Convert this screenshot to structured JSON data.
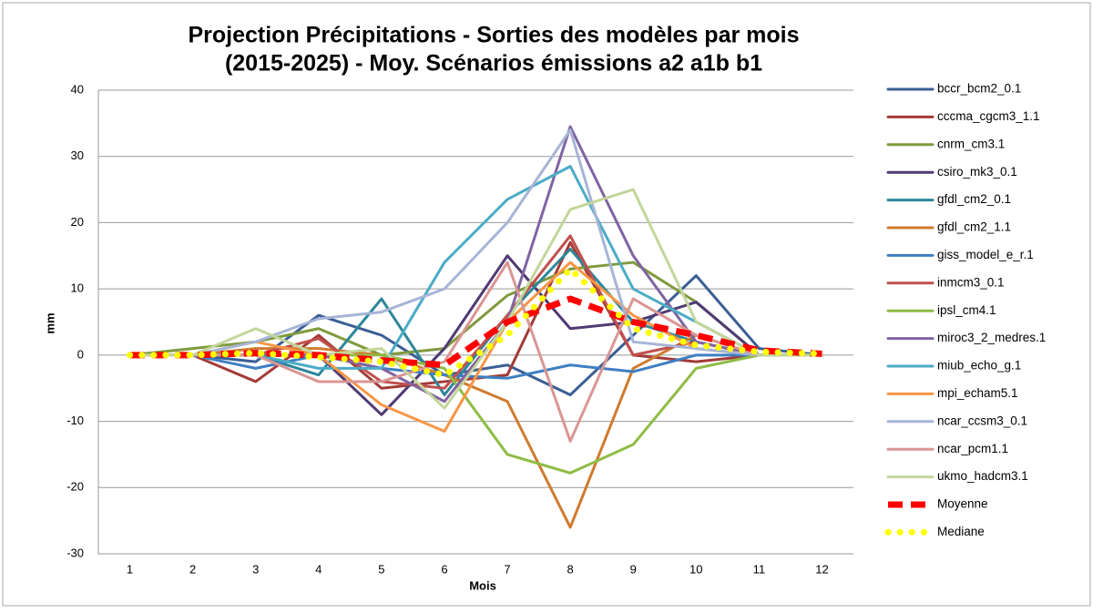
{
  "chart_data": {
    "type": "line",
    "title": [
      "Projection Précipitations - Sorties des modèles par mois",
      "(2015-2025)  - Moy. Scénarios émissions  a2 a1b b1"
    ],
    "x_label": "Mois",
    "y_label": "mm",
    "categories": [
      1,
      2,
      3,
      4,
      5,
      6,
      7,
      8,
      9,
      10,
      11,
      12
    ],
    "ylim": [
      -30,
      40
    ],
    "yticks": [
      -30,
      -20,
      -10,
      0,
      10,
      20,
      30,
      40
    ],
    "grid": true,
    "legend": "right",
    "series": [
      {
        "name": "bccr_bcm2_0.1",
        "color": "#3a5f95",
        "values": [
          0,
          0,
          -1,
          6,
          3,
          -3,
          -1.5,
          -6,
          3,
          12,
          1,
          0
        ]
      },
      {
        "name": "cccma_cgcm3_1.1",
        "color": "#a33b37",
        "values": [
          0,
          0,
          -4,
          3,
          -5,
          -4,
          -3,
          17,
          0,
          -1,
          0,
          0
        ]
      },
      {
        "name": "cnrm_cm3.1",
        "color": "#7f9a3d",
        "values": [
          0,
          1,
          2,
          4,
          0,
          1,
          9,
          13,
          14,
          8,
          0,
          0
        ]
      },
      {
        "name": "csiro_mk3_0.1",
        "color": "#4f3a73",
        "values": [
          0,
          0,
          0,
          0,
          -9,
          1,
          15,
          4,
          5,
          8,
          0,
          0
        ]
      },
      {
        "name": "gfdl_cm2_0.1",
        "color": "#2b8799",
        "values": [
          0,
          0,
          0,
          -3,
          8.5,
          -6,
          6,
          16,
          5,
          2,
          0,
          0
        ]
      },
      {
        "name": "gfdl_cm2_1.1",
        "color": "#d07a2f",
        "values": [
          0,
          0,
          1,
          1,
          0,
          -3,
          -7,
          -26,
          -2,
          3,
          0,
          0
        ]
      },
      {
        "name": "giss_model_e_r.1",
        "color": "#3f7fc2",
        "values": [
          0,
          0,
          -2,
          0,
          -2,
          -3,
          -3.5,
          -1.5,
          -2.5,
          0,
          0,
          0
        ]
      },
      {
        "name": "inmcm3_0.1",
        "color": "#c0504d",
        "values": [
          0,
          0,
          0,
          2.5,
          -4,
          -5,
          6,
          18,
          0,
          2,
          0,
          0
        ]
      },
      {
        "name": "ipsl_cm4.1",
        "color": "#8fbc45",
        "values": [
          0,
          0,
          0,
          0,
          0,
          -2,
          -15,
          -17.8,
          -13.5,
          -2,
          0,
          0
        ]
      },
      {
        "name": "miroc3_2_medres.1",
        "color": "#8064a2",
        "values": [
          0,
          0,
          0,
          0,
          -2,
          -7,
          5,
          34.5,
          15,
          2,
          0,
          0
        ]
      },
      {
        "name": "miub_echo_g.1",
        "color": "#4bacc6",
        "values": [
          0,
          0,
          0,
          -2,
          -2,
          14,
          23.5,
          28.5,
          10,
          5,
          0,
          0
        ]
      },
      {
        "name": "mpi_echam5.1",
        "color": "#f79646",
        "values": [
          0,
          0,
          2,
          0,
          -7.5,
          -11.5,
          5,
          14,
          6,
          1,
          0,
          0
        ]
      },
      {
        "name": "ncar_ccsm3_0.1",
        "color": "#a6b5d7",
        "values": [
          0,
          0,
          2,
          5.5,
          6.5,
          10,
          20,
          34,
          2,
          1,
          0,
          0
        ]
      },
      {
        "name": "ncar_pcm1.1",
        "color": "#d99694",
        "values": [
          0,
          0,
          0,
          -4,
          -4,
          -1,
          14,
          -13,
          8.5,
          3,
          0,
          0
        ]
      },
      {
        "name": "ukmo_hadcm3.1",
        "color": "#c3d69b",
        "values": [
          0,
          0,
          4,
          0,
          1,
          -8,
          5,
          22,
          25,
          5,
          0,
          0
        ]
      },
      {
        "name": "Moyenne",
        "color": "#ff0000",
        "style": "dashed",
        "values": [
          0,
          0,
          0.3,
          0,
          -0.8,
          -1.5,
          5,
          8.5,
          5,
          3,
          0.7,
          0.2
        ]
      },
      {
        "name": "Mediane",
        "color": "#ffff00",
        "style": "dotted",
        "values": [
          0,
          0,
          0.3,
          -0.3,
          -1,
          -3,
          3,
          13,
          4,
          1.5,
          0.5,
          0.2
        ]
      }
    ]
  }
}
